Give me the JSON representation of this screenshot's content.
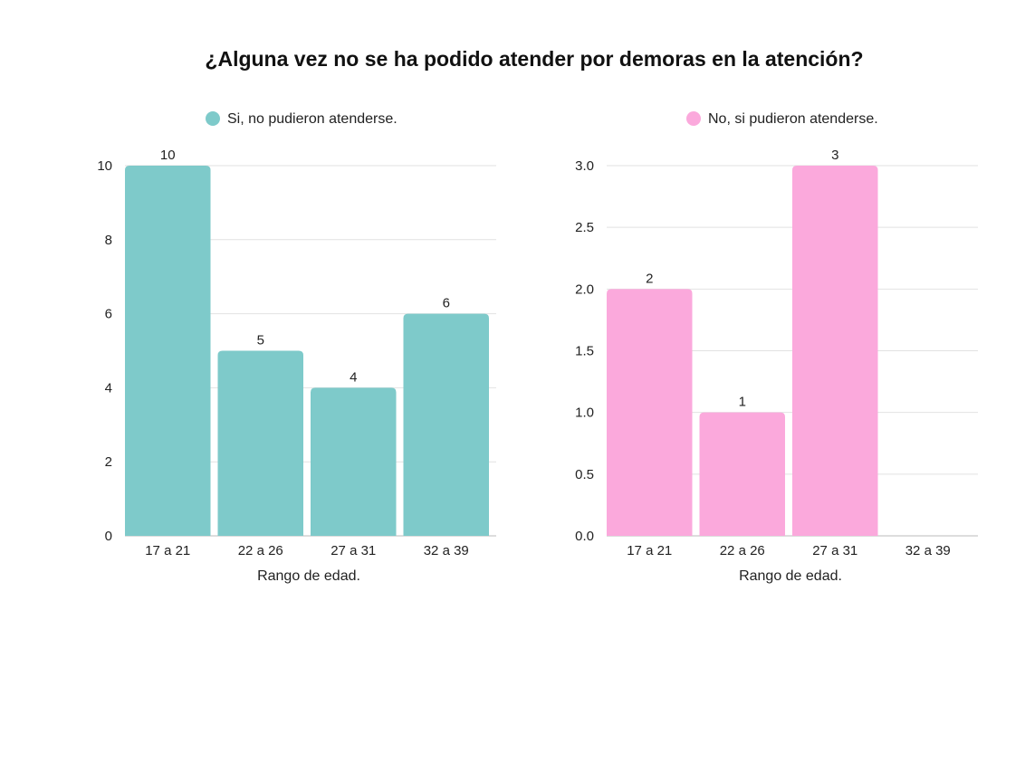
{
  "title": "¿Alguna vez no se ha podido atender por demoras en la atención?",
  "chart_data": [
    {
      "type": "bar",
      "categories": [
        "17 a 21",
        "22 a 26",
        "27 a 31",
        "32 a 39"
      ],
      "series": [
        {
          "name": "Si, no pudieron atenderse.",
          "color": "#7ecaca",
          "values": [
            10,
            5,
            4,
            6
          ]
        }
      ],
      "xlabel": "Rango de edad.",
      "ylabel": "",
      "ylim": [
        0,
        10
      ],
      "yticks": [
        "0",
        "2",
        "4",
        "6",
        "8",
        "10"
      ],
      "grid": true,
      "legend": "top"
    },
    {
      "type": "bar",
      "categories": [
        "17 a 21",
        "22 a 26",
        "27 a 31",
        "32 a 39"
      ],
      "series": [
        {
          "name": "No, si pudieron atenderse.",
          "color": "#fba9dc",
          "values": [
            2,
            1,
            3,
            0
          ]
        }
      ],
      "xlabel": "Rango de edad.",
      "ylabel": "",
      "ylim": [
        0,
        3
      ],
      "yticks": [
        "0.0",
        "0.5",
        "1.0",
        "1.5",
        "2.0",
        "2.5",
        "3.0"
      ],
      "grid": true,
      "legend": "top"
    }
  ]
}
